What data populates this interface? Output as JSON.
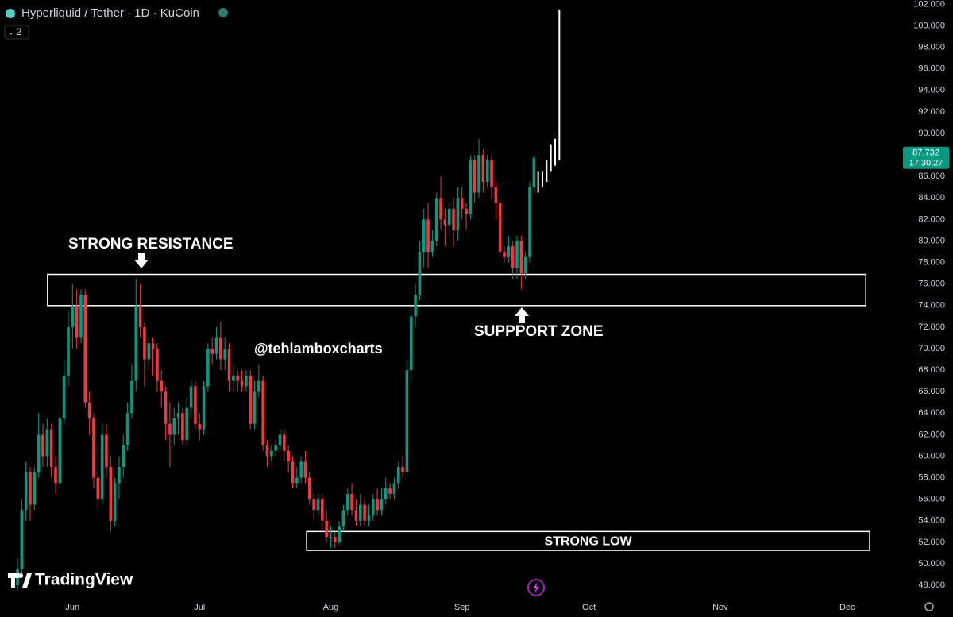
{
  "chart_data": {
    "type": "candlestick",
    "title": "Hyperliquid / Tether · 1D · KuCoin",
    "indicator_toggle": "2",
    "watermark": "TradingView",
    "up_color": "#089981",
    "down_color": "#f23645",
    "grid": false,
    "open": [
      48,
      49.5,
      55,
      58.5,
      55.5,
      58.5,
      62,
      60,
      62.5,
      59,
      57.5,
      63.5,
      67.5,
      72,
      74,
      71,
      75,
      65,
      63.5,
      58,
      56,
      62,
      59,
      54,
      57.5,
      59,
      61,
      64,
      67,
      74,
      72,
      69,
      70.5,
      70,
      67,
      66,
      63,
      62,
      63.5,
      64,
      61.5,
      64.5,
      66.5,
      63,
      62.5,
      66.5,
      70,
      69.5,
      71,
      69,
      70,
      67,
      67.5,
      67,
      66.5,
      67.5,
      63,
      66,
      67,
      61,
      60,
      60.5,
      61,
      62,
      60.5,
      59.5,
      57.5,
      58,
      59.5,
      58,
      56,
      55,
      56,
      54,
      52.5,
      52.5,
      52,
      53.5,
      55,
      56.5,
      55,
      54,
      55.5,
      54,
      54.5,
      56,
      55,
      56,
      57,
      56.5,
      57.5,
      59,
      58.5,
      68,
      73,
      75,
      79,
      82,
      79,
      80,
      84,
      82,
      81.5,
      83,
      81,
      84,
      83,
      82.5,
      87.5,
      84.5,
      88,
      85.5,
      87.5,
      85,
      83.5,
      79,
      78.5,
      79.5,
      77.5,
      80,
      77,
      78.5,
      85
    ],
    "high": [
      50.5,
      56,
      59.5,
      59,
      59,
      64,
      63,
      63.5,
      63,
      60,
      64,
      69,
      73.5,
      76,
      75.5,
      75.5,
      75.5,
      66,
      64,
      61,
      63,
      63,
      60,
      58,
      60,
      62,
      65,
      68.5,
      76.5,
      76,
      72.5,
      71,
      71,
      70.5,
      68,
      66.5,
      65,
      64.5,
      65,
      64.5,
      65.5,
      67,
      67,
      64,
      67,
      70.5,
      71,
      72,
      72.5,
      71,
      70.5,
      68.5,
      68,
      68,
      68,
      68,
      67,
      68.5,
      67.5,
      61.5,
      61,
      61.5,
      62.5,
      62.5,
      61,
      60,
      59,
      60,
      60.5,
      58.5,
      56.5,
      56.5,
      56.5,
      55,
      53.5,
      53,
      54,
      55.5,
      57,
      57.5,
      56,
      56.5,
      56,
      55.5,
      56.5,
      57,
      57,
      58,
      57.5,
      58,
      59.5,
      60,
      69,
      74,
      76,
      80,
      83,
      83.5,
      81,
      84.5,
      86,
      83,
      83.5,
      84,
      85,
      85,
      83.5,
      88,
      88,
      89.5,
      88.5,
      88,
      88,
      85.5,
      84,
      79.5,
      80.5,
      80,
      80.5,
      80.5,
      79,
      85.5,
      88
    ],
    "low": [
      47.5,
      49,
      54,
      54,
      55,
      58,
      59,
      59,
      58,
      56.5,
      57,
      63,
      66.5,
      70,
      70,
      70.5,
      64.5,
      62,
      57,
      55,
      55.5,
      58,
      53,
      53.5,
      56,
      58,
      60.5,
      63.5,
      66,
      71,
      66.5,
      68,
      67.5,
      66,
      64.5,
      61.5,
      59,
      61,
      62,
      61,
      61,
      63.5,
      62.5,
      61.5,
      62,
      66,
      68.5,
      69,
      68,
      68,
      66,
      66,
      66,
      66,
      66,
      62.5,
      62.5,
      65.5,
      60.5,
      59,
      59.5,
      60,
      60.5,
      59.5,
      58.5,
      57,
      57,
      57.5,
      57.5,
      55.5,
      54,
      54.5,
      53,
      52,
      51.5,
      51.5,
      51.8,
      53,
      54.5,
      54.5,
      53.5,
      53.5,
      53.5,
      53.5,
      54,
      54.5,
      54.5,
      55.5,
      56,
      56,
      57,
      58,
      58.5,
      67,
      72,
      74.5,
      77.5,
      77.5,
      78.5,
      79.5,
      81,
      79.5,
      80.5,
      79.5,
      80,
      82,
      81,
      82,
      83.5,
      84,
      84.5,
      85,
      84,
      82,
      78.5,
      78,
      78,
      76.5,
      76.5,
      75.5,
      76.5,
      78,
      84.5
    ],
    "close": [
      49.5,
      55,
      58.5,
      55.5,
      58.5,
      62,
      60,
      62.5,
      59,
      57.5,
      63.5,
      67.5,
      72,
      74,
      71,
      75,
      65,
      63.5,
      58,
      56,
      62,
      59,
      54,
      57.5,
      59,
      61,
      64,
      67,
      74,
      72,
      69,
      70.5,
      70,
      67,
      66,
      63,
      62,
      63.5,
      64,
      61.5,
      64.5,
      66.5,
      63,
      62.5,
      66.5,
      70,
      69.5,
      71,
      69,
      70,
      67,
      67.5,
      67,
      66.5,
      67.5,
      63,
      66,
      67,
      61,
      60,
      60.5,
      61,
      62,
      60.5,
      59.5,
      57.5,
      58,
      59.5,
      58,
      56,
      55,
      56,
      54,
      52.5,
      52.5,
      52,
      53.5,
      55,
      56.5,
      55,
      54,
      55.5,
      54,
      54.5,
      56,
      55,
      56,
      57,
      56.5,
      57.5,
      59,
      58.5,
      68,
      73,
      75,
      79,
      82,
      79,
      80,
      84,
      82,
      81.5,
      83,
      81,
      84,
      83,
      82.5,
      87.5,
      84.5,
      88,
      85.5,
      87.5,
      85,
      83.5,
      79,
      78.5,
      79.5,
      77.5,
      80,
      77,
      78.5,
      85,
      87.732
    ],
    "projection": {
      "color": "#ffffff",
      "x": [
        123,
        124,
        125,
        126,
        127,
        128
      ],
      "low": [
        84.5,
        85,
        85.5,
        86.5,
        87,
        87.5
      ],
      "high": [
        86.5,
        86.5,
        87.5,
        89,
        89.5,
        101.5
      ]
    },
    "last_price": 87.732,
    "countdown": "17:30:27",
    "last_price_color": "#089981",
    "zones": [
      {
        "top": 76.9,
        "bottom": 74.0,
        "x0": 7.1,
        "x1": 200.4
      },
      {
        "top": 53.0,
        "bottom": 51.25,
        "x0": 68.3,
        "x1": 201.3,
        "label": "STRONG LOW"
      }
    ],
    "annotations": [
      "STRONG RESISTANCE",
      "SUPPPORT ZONE",
      "@tehlamboxcharts"
    ],
    "xlim": [
      -4.13,
      208.8
    ],
    "xticks": [
      {
        "value": 13,
        "label": "Jun"
      },
      {
        "value": 43,
        "label": "Jul"
      },
      {
        "value": 74,
        "label": "Aug"
      },
      {
        "value": 105,
        "label": "Sep"
      },
      {
        "value": 135,
        "label": "Oct"
      },
      {
        "value": 166,
        "label": "Nov"
      },
      {
        "value": 196,
        "label": "Dec"
      }
    ],
    "ylim": [
      46.9,
      102.4
    ],
    "yticks": [
      {
        "value": 48,
        "label": "48.000"
      },
      {
        "value": 50,
        "label": "50.000"
      },
      {
        "value": 52,
        "label": "52.000"
      },
      {
        "value": 54,
        "label": "54.000"
      },
      {
        "value": 56,
        "label": "56.000"
      },
      {
        "value": 58,
        "label": "58.000"
      },
      {
        "value": 60,
        "label": "60.000"
      },
      {
        "value": 62,
        "label": "62.000"
      },
      {
        "value": 64,
        "label": "64.000"
      },
      {
        "value": 66,
        "label": "66.000"
      },
      {
        "value": 68,
        "label": "68.000"
      },
      {
        "value": 70,
        "label": "70.000"
      },
      {
        "value": 72,
        "label": "72.000"
      },
      {
        "value": 74,
        "label": "74.000"
      },
      {
        "value": 76,
        "label": "76.000"
      },
      {
        "value": 78,
        "label": "78.000"
      },
      {
        "value": 80,
        "label": "80.000"
      },
      {
        "value": 82,
        "label": "82.000"
      },
      {
        "value": 84,
        "label": "84.000"
      },
      {
        "value": 86,
        "label": "86.000"
      },
      {
        "value": 88,
        "label": "88.000"
      },
      {
        "value": 90,
        "label": "90.000"
      },
      {
        "value": 92,
        "label": "92.000"
      },
      {
        "value": 94,
        "label": "94.000"
      },
      {
        "value": 96,
        "label": "96.000"
      },
      {
        "value": 98,
        "label": "98.000"
      },
      {
        "value": 100,
        "label": "100.000"
      },
      {
        "value": 102,
        "label": "102.000"
      }
    ]
  }
}
